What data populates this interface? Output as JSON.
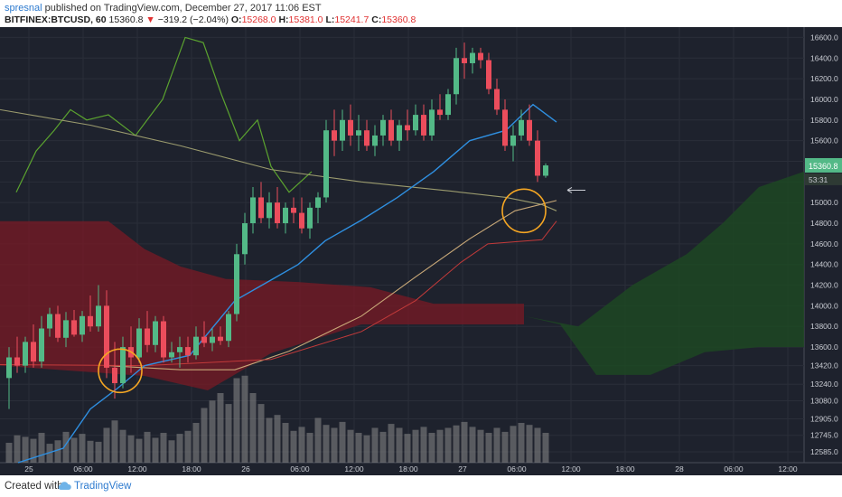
{
  "header": {
    "author": "spresnal",
    "published_text": "published on TradingView.com, December 27, 2017 11:06 EST",
    "symbol": "BITFINEX:BTCUSD, 60",
    "last": "15360.8",
    "arrow": "▼",
    "change": "−319.2 (−2.04%)",
    "open_label": "O:",
    "open": "15268.0",
    "high_label": "H:",
    "high": "15381.0",
    "low_label": "L:",
    "low": "15241.7",
    "close_label": "C:",
    "close": "15360.8"
  },
  "footer": {
    "created_with": "Created with",
    "brand": "TradingView"
  },
  "chart_data": {
    "type": "candlestick",
    "symbol": "BITFINEX:BTCUSD",
    "timeframe": "60",
    "ylim": [
      12480,
      16700
    ],
    "price_ticks": [
      "16600.0",
      "16400.0",
      "16200.0",
      "16000.0",
      "15800.0",
      "15600.0",
      "15400.0",
      "15200.0",
      "15000.0",
      "14800.0",
      "14600.0",
      "14400.0",
      "14200.0",
      "14000.0",
      "13800.0",
      "13600.0",
      "13420.0",
      "13240.0",
      "13080.0",
      "12905.0",
      "12745.0",
      "12585.0"
    ],
    "time_ticks": [
      "25",
      "06:00",
      "12:00",
      "18:00",
      "26",
      "06:00",
      "12:00",
      "18:00",
      "27",
      "06:00",
      "12:00",
      "18:00",
      "28",
      "06:00",
      "12:00"
    ],
    "last_price_label": "15360.8",
    "countdown": "53:31",
    "colors": {
      "up": "#53b987",
      "down": "#eb4d5c",
      "background": "#1e222d",
      "grid": "#2a2e39",
      "kumo_bear": "#7a1a24",
      "kumo_bull": "#1d4a22",
      "base_line": "#2f8fe0",
      "lagging": "#5ba32f",
      "ma": "#9b9b6e",
      "highlight": "#f5a623"
    },
    "candles": [
      [
        13300,
        13600,
        13000,
        13500
      ],
      [
        13500,
        13700,
        13350,
        13420
      ],
      [
        13420,
        13700,
        13350,
        13650
      ],
      [
        13650,
        13820,
        13400,
        13460
      ],
      [
        13460,
        13900,
        13400,
        13780
      ],
      [
        13780,
        13980,
        13700,
        13920
      ],
      [
        13920,
        14000,
        13650,
        13690
      ],
      [
        13690,
        13940,
        13600,
        13860
      ],
      [
        13860,
        13960,
        13700,
        13720
      ],
      [
        13720,
        13950,
        13650,
        13900
      ],
      [
        13900,
        14100,
        13750,
        13800
      ],
      [
        13800,
        14200,
        13750,
        14000
      ],
      [
        14000,
        14150,
        13300,
        13400
      ],
      [
        13400,
        13650,
        13100,
        13250
      ],
      [
        13250,
        13700,
        13200,
        13600
      ],
      [
        13600,
        13800,
        13350,
        13500
      ],
      [
        13500,
        13880,
        13450,
        13780
      ],
      [
        13780,
        13950,
        13550,
        13620
      ],
      [
        13620,
        13900,
        13550,
        13850
      ],
      [
        13850,
        13900,
        13450,
        13500
      ],
      [
        13500,
        13650,
        13450,
        13550
      ],
      [
        13550,
        13700,
        13400,
        13600
      ],
      [
        13600,
        13700,
        13450,
        13520
      ],
      [
        13520,
        13800,
        13480,
        13700
      ],
      [
        13700,
        13850,
        13600,
        13640
      ],
      [
        13640,
        13780,
        13560,
        13700
      ],
      [
        13700,
        13800,
        13620,
        13660
      ],
      [
        13660,
        13950,
        13600,
        13920
      ],
      [
        13920,
        14600,
        13850,
        14500
      ],
      [
        14500,
        14900,
        14400,
        14800
      ],
      [
        14800,
        15150,
        14700,
        15050
      ],
      [
        15050,
        15200,
        14800,
        14850
      ],
      [
        14850,
        15100,
        14750,
        15000
      ],
      [
        15000,
        15150,
        14750,
        14800
      ],
      [
        14800,
        15000,
        14700,
        14950
      ],
      [
        14950,
        15050,
        14800,
        14900
      ],
      [
        14900,
        15050,
        14700,
        14750
      ],
      [
        14750,
        15000,
        14650,
        14950
      ],
      [
        14950,
        15100,
        14800,
        15050
      ],
      [
        15050,
        15800,
        15000,
        15700
      ],
      [
        15700,
        15900,
        15450,
        15600
      ],
      [
        15600,
        15900,
        15500,
        15800
      ],
      [
        15800,
        15950,
        15550,
        15650
      ],
      [
        15650,
        15850,
        15500,
        15700
      ],
      [
        15700,
        15800,
        15500,
        15550
      ],
      [
        15550,
        15750,
        15450,
        15650
      ],
      [
        15650,
        15850,
        15550,
        15800
      ],
      [
        15800,
        15900,
        15550,
        15600
      ],
      [
        15600,
        15800,
        15500,
        15750
      ],
      [
        15750,
        15900,
        15600,
        15700
      ],
      [
        15700,
        15950,
        15650,
        15850
      ],
      [
        15850,
        15950,
        15600,
        15650
      ],
      [
        15650,
        16000,
        15600,
        15900
      ],
      [
        15900,
        16050,
        15800,
        15850
      ],
      [
        15850,
        16100,
        15800,
        16050
      ],
      [
        16050,
        16500,
        15950,
        16400
      ],
      [
        16400,
        16550,
        16200,
        16350
      ],
      [
        16350,
        16500,
        16250,
        16450
      ],
      [
        16450,
        16500,
        16300,
        16380
      ],
      [
        16380,
        16450,
        16050,
        16100
      ],
      [
        16100,
        16200,
        15850,
        15900
      ],
      [
        15900,
        16000,
        15500,
        15550
      ],
      [
        15550,
        15750,
        15400,
        15650
      ],
      [
        15650,
        15900,
        15600,
        15800
      ],
      [
        15800,
        15950,
        15550,
        15600
      ],
      [
        15600,
        15700,
        15200,
        15260
      ],
      [
        15260,
        15380,
        15240,
        15360
      ]
    ]
  }
}
